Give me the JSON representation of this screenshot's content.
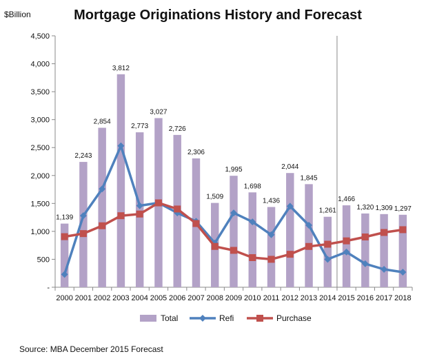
{
  "chart_data": {
    "type": "bar+line",
    "unit_label": "$Billion",
    "title": "Mortgage Originations History and Forecast",
    "categories": [
      "2000",
      "2001",
      "2002",
      "2003",
      "2004",
      "2005",
      "2006",
      "2007",
      "2008",
      "2009",
      "2010",
      "2011",
      "2012",
      "2013",
      "2014",
      "2015",
      "2016",
      "2017",
      "2018"
    ],
    "ylim": [
      0,
      4500
    ],
    "yticks": [
      0,
      500,
      1000,
      1500,
      2000,
      2500,
      3000,
      3500,
      4000,
      4500
    ],
    "ytick_labels": [
      "-",
      "500",
      "1,000",
      "1,500",
      "2,000",
      "2,500",
      "3,000",
      "3,500",
      "4,000",
      "4,500"
    ],
    "grid": false,
    "forecast_divider_after": "2014",
    "legend_position": "bottom",
    "series": [
      {
        "name": "Total",
        "kind": "bar",
        "color": "#b3a2c7",
        "values": [
          1139,
          2243,
          2854,
          3812,
          2773,
          3027,
          2726,
          2306,
          1509,
          1995,
          1698,
          1436,
          2044,
          1845,
          1261,
          1466,
          1320,
          1309,
          1297
        ],
        "labels": [
          "1,139",
          "2,243",
          "2,854",
          "3,812",
          "2,773",
          "3,027",
          "2,726",
          "2,306",
          "1,509",
          "1,995",
          "1,698",
          "1,436",
          "2,044",
          "1,845",
          "1,261",
          "1,466",
          "1,320",
          "1,309",
          "1,297"
        ]
      },
      {
        "name": "Refi",
        "kind": "line",
        "marker": "diamond",
        "color": "#4f81bd",
        "values": [
          230,
          1280,
          1760,
          2530,
          1460,
          1510,
          1330,
          1180,
          790,
          1330,
          1170,
          940,
          1450,
          1110,
          500,
          630,
          420,
          320,
          270
        ]
      },
      {
        "name": "Purchase",
        "kind": "line",
        "marker": "square",
        "color": "#c0504d",
        "values": [
          905,
          960,
          1100,
          1280,
          1310,
          1510,
          1400,
          1140,
          730,
          660,
          530,
          500,
          590,
          730,
          770,
          830,
          900,
          980,
          1030
        ]
      }
    ],
    "source": "Source: MBA December 2015 Forecast"
  }
}
